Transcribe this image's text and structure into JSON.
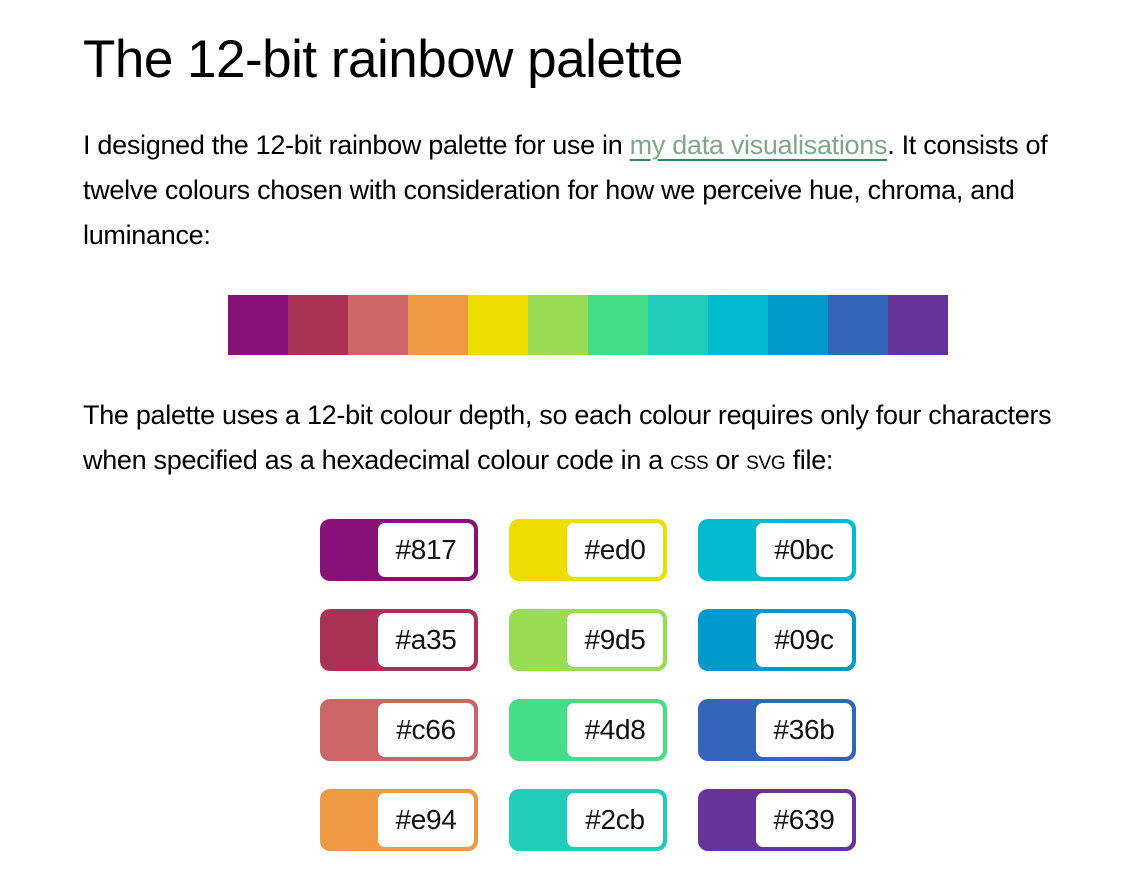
{
  "page": {
    "title": "The 12-bit rainbow palette"
  },
  "intro": {
    "before_link": "I designed the 12-bit rainbow palette for use in ",
    "link_text": "my data visualisations",
    "after_link": ". It consists of twelve colours chosen with consideration for how we perceive hue, chroma, and luminance:"
  },
  "usage": {
    "parts": [
      "The palette uses a 12-bit colour depth, so each colour requires only four characters when specified as a hexadecimal colour code in a ",
      "css",
      " or ",
      "svg",
      " file:"
    ]
  },
  "palette": {
    "strip_colors": [
      "#817",
      "#a35",
      "#c66",
      "#e94",
      "#ed0",
      "#9d5",
      "#4d8",
      "#2cb",
      "#0bc",
      "#09c",
      "#36b",
      "#639"
    ],
    "swatch_grid": [
      [
        "#817",
        "#ed0",
        "#0bc"
      ],
      [
        "#a35",
        "#9d5",
        "#09c"
      ],
      [
        "#c66",
        "#4d8",
        "#36b"
      ],
      [
        "#e94",
        "#2cb",
        "#639"
      ]
    ]
  },
  "colors": {
    "link_text": "#83a68a",
    "link_underline": "#2e8b57",
    "body_text": "#000000",
    "swatch_label_bg": "#ffffff"
  }
}
